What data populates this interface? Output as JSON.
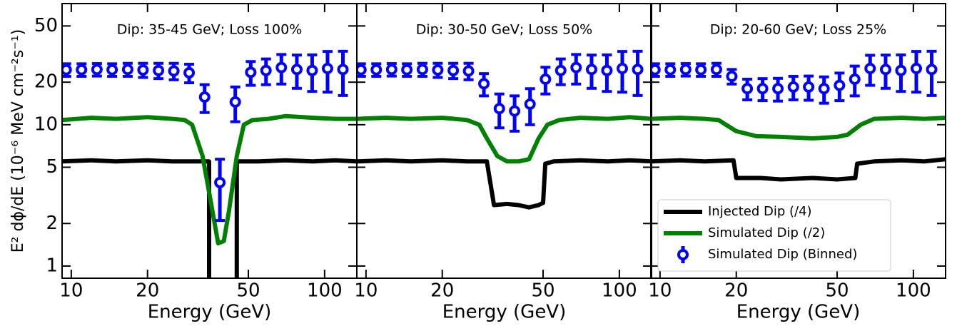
{
  "chart_data": [
    {
      "type": "line",
      "title": "Dip: 35-45 GeV; Loss 100%",
      "x_label": "Energy (GeV)",
      "y_label": "E² dϕ/dE (10⁻⁶ MeV cm⁻²s⁻¹)",
      "log_x": true,
      "log_y": true,
      "xlim": [
        9.2,
        134
      ],
      "ylim": [
        0.82,
        72
      ],
      "xticks": [
        10,
        20,
        50,
        100
      ],
      "yticks": [
        1,
        2,
        5,
        10,
        20,
        50
      ],
      "series": [
        {
          "color": "#000000",
          "x": [
            9.2,
            12,
            15,
            20,
            25,
            30,
            35,
            35,
            45,
            45,
            55,
            70,
            90,
            110,
            134
          ],
          "values": [
            5.5,
            5.6,
            5.5,
            5.6,
            5.5,
            5.5,
            5.5,
            0,
            0,
            5.5,
            5.5,
            5.6,
            5.5,
            5.6,
            5.5
          ]
        },
        {
          "color": "#008000",
          "x": [
            9.2,
            12,
            15,
            20,
            25,
            28,
            30,
            33,
            36,
            38,
            40,
            42,
            45,
            48,
            52,
            60,
            70,
            90,
            110,
            134
          ],
          "values": [
            10.8,
            11.2,
            11,
            11.3,
            11,
            10.8,
            10,
            6,
            2.5,
            1.45,
            1.5,
            2.5,
            6,
            10,
            10.8,
            11,
            11.5,
            11.2,
            11,
            11
          ]
        },
        {
          "type": "errorbar",
          "color": "#0000ff",
          "x": [
            9.55,
            10.98,
            12.63,
            14.5,
            16.7,
            19.2,
            22.1,
            25.4,
            29.2,
            33.6,
            38.6,
            44.4,
            51.1,
            58.7,
            67.5,
            77.7,
            89.3,
            102.7,
            118.1
          ],
          "values": [
            24.5,
            24.5,
            24.6,
            24.5,
            24.6,
            24.4,
            24.2,
            24,
            23.3,
            15.7,
            3.9,
            14.5,
            23.5,
            24.2,
            25.4,
            24.6,
            24.2,
            25,
            24.6
          ],
          "errors": [
            2.5,
            2.5,
            2.5,
            2.5,
            2.6,
            2.8,
            3,
            3.2,
            3.5,
            3.5,
            1.8,
            4,
            4.5,
            5,
            6,
            6.5,
            7,
            8,
            8.5
          ]
        }
      ]
    },
    {
      "type": "line",
      "title": "Dip: 30-50 GeV; Loss 50%",
      "x_label": "Energy (GeV)",
      "log_x": true,
      "log_y": true,
      "xlim": [
        9.2,
        134
      ],
      "ylim": [
        0.82,
        72
      ],
      "xticks": [
        10,
        20,
        50,
        100
      ],
      "yticks": [
        1,
        2,
        5,
        10,
        20,
        50
      ],
      "series": [
        {
          "color": "#000000",
          "x": [
            9.2,
            12,
            15,
            20,
            25,
            29,
            30,
            32,
            36,
            40,
            44,
            48,
            50,
            51,
            55,
            70,
            90,
            110,
            134
          ],
          "values": [
            5.5,
            5.6,
            5.5,
            5.6,
            5.5,
            5.5,
            5.5,
            2.7,
            2.75,
            2.7,
            2.6,
            2.7,
            2.8,
            5.3,
            5.5,
            5.6,
            5.5,
            5.6,
            5.5
          ]
        },
        {
          "color": "#008000",
          "x": [
            9.2,
            12,
            15,
            20,
            25,
            28,
            30,
            33,
            36,
            40,
            44,
            48,
            52,
            58,
            70,
            90,
            110,
            134
          ],
          "values": [
            11,
            11.2,
            11,
            11.2,
            10.8,
            10,
            8,
            6,
            5.5,
            5.5,
            5.7,
            8,
            10,
            10.8,
            11.2,
            11,
            11.3,
            11
          ]
        },
        {
          "type": "errorbar",
          "color": "#0000ff",
          "x": [
            9.55,
            10.98,
            12.63,
            14.5,
            16.7,
            19.2,
            22.1,
            25.4,
            29.2,
            33.6,
            38.6,
            44.4,
            51.1,
            58.7,
            67.5,
            77.7,
            89.3,
            102.7,
            118.1
          ],
          "values": [
            24.5,
            24.5,
            24.6,
            24.5,
            24.6,
            24.4,
            24.2,
            24,
            19.5,
            13,
            12.5,
            14,
            21,
            24.2,
            25.4,
            24.6,
            24.2,
            25,
            24.6
          ],
          "errors": [
            2.5,
            2.5,
            2.5,
            2.5,
            2.6,
            2.8,
            3,
            3.2,
            3.5,
            3.5,
            3.5,
            4,
            4.5,
            5,
            6,
            6.5,
            7,
            8,
            8.5
          ]
        }
      ]
    },
    {
      "type": "line",
      "title": "Dip: 20-60 GeV; Loss 25%",
      "x_label": "Energy (GeV)",
      "log_x": true,
      "log_y": true,
      "xlim": [
        9.2,
        134
      ],
      "ylim": [
        0.82,
        72
      ],
      "xticks": [
        10,
        20,
        50,
        100
      ],
      "yticks": [
        1,
        2,
        5,
        10,
        20,
        50
      ],
      "legend": "lower right",
      "series": [
        {
          "name": "Injected Dip (/4)",
          "color": "#000000",
          "x": [
            9.2,
            12,
            15,
            19.5,
            20,
            25,
            30,
            40,
            50,
            59,
            60,
            70,
            90,
            110,
            134
          ],
          "values": [
            5.5,
            5.6,
            5.5,
            5.6,
            4.2,
            4.2,
            4.1,
            4.2,
            4.1,
            4.2,
            5.3,
            5.5,
            5.6,
            5.5,
            5.7
          ]
        },
        {
          "name": "Simulated Dip (/2)",
          "color": "#008000",
          "x": [
            9.2,
            12,
            15,
            17,
            20,
            24,
            30,
            40,
            50,
            55,
            62,
            70,
            90,
            110,
            134
          ],
          "values": [
            11,
            11.2,
            11,
            10.8,
            9,
            8.3,
            8.2,
            8,
            8.2,
            8.5,
            10,
            11,
            11.2,
            11,
            11.2
          ]
        },
        {
          "name": "Simulated Dip (Binned)",
          "type": "errorbar",
          "color": "#0000ff",
          "x": [
            9.55,
            10.98,
            12.63,
            14.5,
            16.7,
            19.2,
            22.1,
            25.4,
            29.2,
            33.6,
            38.6,
            44.4,
            51.1,
            58.7,
            67.5,
            77.7,
            89.3,
            102.7,
            118.1
          ],
          "values": [
            24.5,
            24.5,
            24.6,
            24.5,
            24.6,
            22,
            18,
            18,
            18,
            18.5,
            18.5,
            18,
            19,
            21,
            25,
            24.6,
            24.2,
            25,
            24.6
          ],
          "errors": [
            2.5,
            2.5,
            2.5,
            2.5,
            2.6,
            2.6,
            3,
            3.2,
            3.3,
            3.5,
            3.6,
            3.8,
            4.2,
            5,
            6,
            6.5,
            7,
            8,
            8.5
          ]
        }
      ]
    }
  ]
}
